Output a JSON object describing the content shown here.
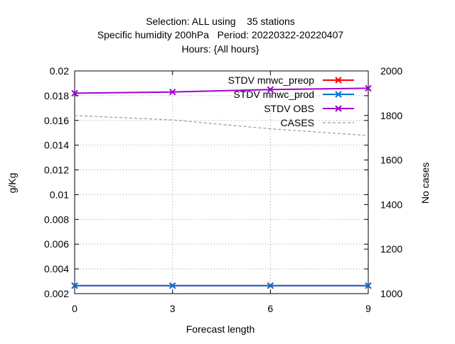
{
  "chart_data": {
    "type": "line",
    "title_lines": [
      "Selection: ALL using    35 stations",
      "Specific humidity 200hPa   Period: 20220322-20220407",
      "Hours: {All hours}"
    ],
    "xlabel": "Forecast length",
    "ylabel": "g/Kg",
    "y2label": "No cases",
    "x": [
      0,
      3,
      6,
      9
    ],
    "xlim": [
      0,
      9
    ],
    "xticks": [
      "0",
      "3",
      "6",
      "9"
    ],
    "ylim": [
      0.002,
      0.02
    ],
    "yticks": [
      "0.002",
      "0.004",
      "0.006",
      "0.008",
      "0.01",
      "0.012",
      "0.014",
      "0.016",
      "0.018",
      "0.02"
    ],
    "y2lim": [
      1000,
      2000
    ],
    "y2ticks": [
      "1000",
      "1200",
      "1400",
      "1600",
      "1800",
      "2000"
    ],
    "grid": true,
    "legend_position": "top-right",
    "series": [
      {
        "name": "STDV mnwc_preop",
        "axis": "y",
        "color": "#ff0000",
        "marker": "x",
        "values": [
          0.00265,
          0.00265,
          0.00265,
          0.00265
        ]
      },
      {
        "name": "STDV mnwc_prod",
        "axis": "y",
        "color": "#0072d9",
        "marker": "x",
        "values": [
          0.00265,
          0.00265,
          0.00265,
          0.00265
        ]
      },
      {
        "name": "STDV OBS",
        "axis": "y",
        "color": "#a000d0",
        "marker": "x",
        "values": [
          0.0182,
          0.0183,
          0.0185,
          0.0186
        ]
      },
      {
        "name": "CASES",
        "axis": "y2",
        "color": "#999999",
        "dashed": true,
        "values": [
          1800,
          1780,
          1740,
          1710
        ]
      }
    ]
  }
}
